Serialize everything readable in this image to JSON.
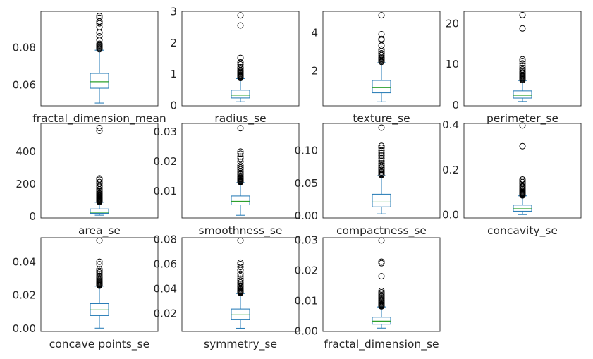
{
  "chart_data": [
    {
      "type": "box",
      "xlabel": "fractal_dimension_mean",
      "yticks": [
        0.06,
        0.08
      ],
      "ylim": [
        0.0485,
        0.0995
      ],
      "box": {
        "whisker_low": 0.05,
        "q1": 0.058,
        "median": 0.0615,
        "q3": 0.066,
        "whisker_high": 0.0785
      },
      "outliers": [
        0.079,
        0.0795,
        0.08,
        0.0805,
        0.081,
        0.0815,
        0.082,
        0.084,
        0.086,
        0.088,
        0.091,
        0.093,
        0.094,
        0.096,
        0.097
      ]
    },
    {
      "type": "box",
      "xlabel": "radius_se",
      "yticks": [
        0,
        1,
        2,
        3
      ],
      "ylim": [
        -0.02,
        3.0
      ],
      "box": {
        "whisker_low": 0.11,
        "q1": 0.23,
        "median": 0.32,
        "q3": 0.48,
        "whisker_high": 0.85
      },
      "outliers": [
        0.87,
        0.89,
        0.91,
        0.93,
        0.95,
        0.97,
        1.0,
        1.03,
        1.06,
        1.09,
        1.12,
        1.17,
        1.21,
        1.3,
        1.37,
        1.51,
        2.55,
        2.87
      ]
    },
    {
      "type": "box",
      "xlabel": "texture_se",
      "yticks": [
        2,
        4
      ],
      "ylim": [
        0.15,
        5.1
      ],
      "box": {
        "whisker_low": 0.36,
        "q1": 0.83,
        "median": 1.1,
        "q3": 1.48,
        "whisker_high": 2.4
      },
      "outliers": [
        2.45,
        2.5,
        2.55,
        2.6,
        2.65,
        2.7,
        2.8,
        2.9,
        3.0,
        3.1,
        3.3,
        3.6,
        3.65,
        3.9,
        4.89
      ]
    },
    {
      "type": "box",
      "xlabel": "perimeter_se",
      "yticks": [
        0,
        10,
        20
      ],
      "ylim": [
        -0.3,
        22.9
      ],
      "box": {
        "whisker_low": 0.76,
        "q1": 1.6,
        "median": 2.3,
        "q3": 3.36,
        "whisker_high": 5.9
      },
      "outliers": [
        6.0,
        6.2,
        6.4,
        6.6,
        6.8,
        7.0,
        7.3,
        7.6,
        7.9,
        8.2,
        8.6,
        9.0,
        9.5,
        10.1,
        10.7,
        11.1,
        18.7,
        21.98
      ]
    },
    {
      "type": "box",
      "xlabel": "area_se",
      "yticks": [
        0,
        200,
        400
      ],
      "ylim": [
        -10,
        570
      ],
      "box": {
        "whisker_low": 6.8,
        "q1": 17.9,
        "median": 24.5,
        "q3": 45.2,
        "whisker_high": 86
      },
      "outliers": [
        88,
        92,
        96,
        100,
        104,
        108,
        112,
        116,
        120,
        125,
        130,
        135,
        140,
        148,
        155,
        165,
        175,
        185,
        200,
        210,
        225,
        233,
        525,
        542
      ]
    },
    {
      "type": "box",
      "xlabel": "smoothness_se",
      "yticks": [
        0.01,
        0.02,
        0.03
      ],
      "ylim": [
        0.0008,
        0.0327
      ],
      "box": {
        "whisker_low": 0.0017,
        "q1": 0.0052,
        "median": 0.0064,
        "q3": 0.0082,
        "whisker_high": 0.0127
      },
      "outliers": [
        0.0129,
        0.0131,
        0.0133,
        0.0135,
        0.0138,
        0.014,
        0.0143,
        0.0146,
        0.015,
        0.0155,
        0.016,
        0.0165,
        0.0172,
        0.0178,
        0.0185,
        0.0198,
        0.0208,
        0.0215,
        0.0225,
        0.0232,
        0.0311
      ]
    },
    {
      "type": "box",
      "xlabel": "compactness_se",
      "yticks": [
        0.0,
        0.05,
        0.1
      ],
      "ylim": [
        -0.004,
        0.1415
      ],
      "box": {
        "whisker_low": 0.0023,
        "q1": 0.0131,
        "median": 0.0205,
        "q3": 0.0325,
        "whisker_high": 0.061
      },
      "outliers": [
        0.062,
        0.063,
        0.064,
        0.066,
        0.068,
        0.07,
        0.072,
        0.074,
        0.077,
        0.08,
        0.084,
        0.088,
        0.092,
        0.096,
        0.1,
        0.104,
        0.107,
        0.135
      ]
    },
    {
      "type": "box",
      "xlabel": "concavity_se",
      "yticks": [
        0.0,
        0.2,
        0.4
      ],
      "ylim": [
        -0.015,
        0.405
      ],
      "box": {
        "whisker_low": 0.0,
        "q1": 0.015,
        "median": 0.026,
        "q3": 0.042,
        "whisker_high": 0.083
      },
      "outliers": [
        0.085,
        0.088,
        0.091,
        0.094,
        0.097,
        0.1,
        0.104,
        0.108,
        0.113,
        0.118,
        0.124,
        0.13,
        0.137,
        0.144,
        0.15,
        0.156,
        0.304,
        0.396
      ]
    },
    {
      "type": "box",
      "xlabel": "concave points_se",
      "yticks": [
        0.0,
        0.02,
        0.04
      ],
      "ylim": [
        -0.002,
        0.0545
      ],
      "box": {
        "whisker_low": 0.0,
        "q1": 0.0076,
        "median": 0.011,
        "q3": 0.0148,
        "whisker_high": 0.0253
      },
      "outliers": [
        0.0256,
        0.026,
        0.0264,
        0.0268,
        0.0273,
        0.0278,
        0.0284,
        0.029,
        0.0298,
        0.0305,
        0.0315,
        0.0325,
        0.0335,
        0.0345,
        0.0355,
        0.0385,
        0.04,
        0.0528
      ]
    },
    {
      "type": "box",
      "xlabel": "symmetry_se",
      "yticks": [
        0.02,
        0.04,
        0.06,
        0.08
      ],
      "ylim": [
        0.0053,
        0.0812
      ],
      "box": {
        "whisker_low": 0.0079,
        "q1": 0.0152,
        "median": 0.0188,
        "q3": 0.0235,
        "whisker_high": 0.036
      },
      "outliers": [
        0.0365,
        0.037,
        0.0375,
        0.038,
        0.0387,
        0.0395,
        0.0405,
        0.0415,
        0.0425,
        0.0438,
        0.045,
        0.0465,
        0.048,
        0.05,
        0.052,
        0.055,
        0.0575,
        0.0598,
        0.061,
        0.0789
      ]
    },
    {
      "type": "box",
      "xlabel": "fractal_dimension_se",
      "yticks": [
        0.0,
        0.01,
        0.02,
        0.03
      ],
      "ylim": [
        -0.0002,
        0.0307
      ],
      "box": {
        "whisker_low": 0.0009,
        "q1": 0.0022,
        "median": 0.0032,
        "q3": 0.0045,
        "whisker_high": 0.0079
      },
      "outliers": [
        0.0081,
        0.0083,
        0.0085,
        0.0087,
        0.009,
        0.0093,
        0.0096,
        0.0099,
        0.0102,
        0.0106,
        0.011,
        0.0114,
        0.0118,
        0.0122,
        0.0127,
        0.0132,
        0.018,
        0.0223,
        0.0228,
        0.0298
      ]
    }
  ],
  "colors": {
    "box": "#1f77b4",
    "median": "#2ca02c",
    "frame": "#262626",
    "text": "#262626",
    "flier": "#000000"
  }
}
